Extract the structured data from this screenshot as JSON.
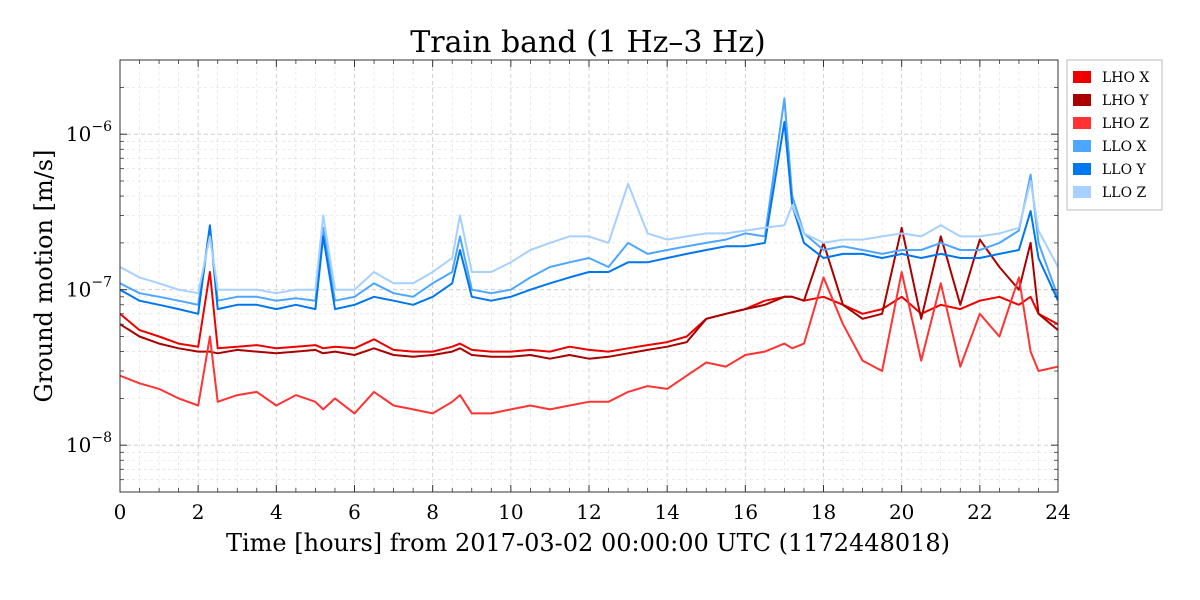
{
  "chart_data": {
    "type": "line",
    "title": "Train band (1 Hz–3 Hz)",
    "xlabel": "Time [hours] from 2017-03-02 00:00:00 UTC (1172448018)",
    "ylabel": "Ground motion [m/s]",
    "xlim": [
      0,
      24
    ],
    "ylim": [
      5e-09,
      3e-06
    ],
    "yscale": "log",
    "grid": true,
    "legend_position": "outside-top-right",
    "x_ticks": [
      0,
      2,
      4,
      6,
      8,
      10,
      12,
      14,
      16,
      18,
      20,
      22,
      24
    ],
    "x_tick_labels": [
      "0",
      "2",
      "4",
      "6",
      "8",
      "10",
      "12",
      "14",
      "16",
      "18",
      "20",
      "22",
      "24"
    ],
    "y_ticks": [
      1e-08,
      1e-07,
      1e-06
    ],
    "y_tick_labels": [
      {
        "base": "10",
        "exp": "−8"
      },
      {
        "base": "10",
        "exp": "−7"
      },
      {
        "base": "10",
        "exp": "−6"
      }
    ],
    "x": [
      0,
      0.5,
      1,
      1.5,
      2,
      2.3,
      2.5,
      3,
      3.5,
      4,
      4.5,
      5,
      5.2,
      5.5,
      6,
      6.5,
      7,
      7.5,
      8,
      8.5,
      8.7,
      9,
      9.5,
      10,
      10.5,
      11,
      11.5,
      12,
      12.5,
      13,
      13.5,
      14,
      14.5,
      15,
      15.5,
      16,
      16.5,
      17,
      17.2,
      17.5,
      18,
      18.5,
      19,
      19.5,
      20,
      20.5,
      21,
      21.5,
      22,
      22.5,
      23,
      23.3,
      23.5,
      24
    ],
    "series": [
      {
        "name": "LHO X",
        "color": "#ee0000",
        "values": [
          7e-08,
          5.5e-08,
          5e-08,
          4.5e-08,
          4.3e-08,
          1.3e-07,
          4.2e-08,
          4.3e-08,
          4.4e-08,
          4.2e-08,
          4.3e-08,
          4.4e-08,
          4.2e-08,
          4.3e-08,
          4.2e-08,
          4.8e-08,
          4.1e-08,
          4e-08,
          4e-08,
          4.3e-08,
          4.5e-08,
          4.1e-08,
          4e-08,
          4e-08,
          4.1e-08,
          4e-08,
          4.3e-08,
          4.1e-08,
          4e-08,
          4.2e-08,
          4.4e-08,
          4.6e-08,
          5e-08,
          6.5e-08,
          7e-08,
          7.5e-08,
          8.5e-08,
          9e-08,
          9e-08,
          8.5e-08,
          9e-08,
          8e-08,
          7e-08,
          7.5e-08,
          9e-08,
          7e-08,
          8e-08,
          7.5e-08,
          8.5e-08,
          9e-08,
          8e-08,
          9e-08,
          7e-08,
          6e-08
        ]
      },
      {
        "name": "LHO Y",
        "color": "#aa0000",
        "values": [
          6e-08,
          5e-08,
          4.5e-08,
          4.2e-08,
          4e-08,
          4e-08,
          3.9e-08,
          4.1e-08,
          4e-08,
          3.9e-08,
          4e-08,
          4.1e-08,
          3.9e-08,
          4e-08,
          3.8e-08,
          4.2e-08,
          3.8e-08,
          3.7e-08,
          3.8e-08,
          4e-08,
          4.2e-08,
          3.8e-08,
          3.7e-08,
          3.7e-08,
          3.8e-08,
          3.6e-08,
          3.8e-08,
          3.6e-08,
          3.7e-08,
          3.9e-08,
          4.1e-08,
          4.3e-08,
          4.6e-08,
          6.5e-08,
          7e-08,
          7.5e-08,
          8e-08,
          9e-08,
          9e-08,
          8.5e-08,
          2e-07,
          8e-08,
          6.5e-08,
          7e-08,
          2.5e-07,
          6.5e-08,
          2.2e-07,
          8e-08,
          2.1e-07,
          1.4e-07,
          1e-07,
          2e-07,
          7e-08,
          5.5e-08
        ]
      },
      {
        "name": "LHO Z",
        "color": "#ff3333",
        "values": [
          2.8e-08,
          2.5e-08,
          2.3e-08,
          2e-08,
          1.8e-08,
          5e-08,
          1.9e-08,
          2.1e-08,
          2.2e-08,
          1.8e-08,
          2.1e-08,
          1.9e-08,
          1.7e-08,
          2e-08,
          1.6e-08,
          2.2e-08,
          1.8e-08,
          1.7e-08,
          1.6e-08,
          1.9e-08,
          2.1e-08,
          1.6e-08,
          1.6e-08,
          1.7e-08,
          1.8e-08,
          1.7e-08,
          1.8e-08,
          1.9e-08,
          1.9e-08,
          2.2e-08,
          2.4e-08,
          2.3e-08,
          2.8e-08,
          3.4e-08,
          3.2e-08,
          3.8e-08,
          4e-08,
          4.5e-08,
          4.2e-08,
          4.5e-08,
          1.2e-07,
          6e-08,
          3.5e-08,
          3e-08,
          1.3e-07,
          3.5e-08,
          1.1e-07,
          3.2e-08,
          7e-08,
          5e-08,
          1.2e-07,
          4e-08,
          3e-08,
          3.2e-08
        ]
      },
      {
        "name": "LLO X",
        "color": "#4da6ff",
        "values": [
          1.1e-07,
          9.5e-08,
          9e-08,
          8.5e-08,
          8e-08,
          2.5e-07,
          8.5e-08,
          9e-08,
          9e-08,
          8.5e-08,
          8.8e-08,
          8.5e-08,
          2.5e-07,
          8.5e-08,
          9e-08,
          1.1e-07,
          9.5e-08,
          9e-08,
          1.1e-07,
          1.3e-07,
          2.2e-07,
          1e-07,
          9.5e-08,
          1e-07,
          1.2e-07,
          1.4e-07,
          1.5e-07,
          1.6e-07,
          1.4e-07,
          2e-07,
          1.7e-07,
          1.8e-07,
          1.9e-07,
          2e-07,
          2.1e-07,
          2.3e-07,
          2.2e-07,
          1.7e-06,
          4e-07,
          2.3e-07,
          1.8e-07,
          1.9e-07,
          1.8e-07,
          1.7e-07,
          1.8e-07,
          1.8e-07,
          2e-07,
          1.8e-07,
          1.8e-07,
          2e-07,
          2.4e-07,
          5.5e-07,
          2e-07,
          9e-08
        ]
      },
      {
        "name": "LLO Y",
        "color": "#0077ee",
        "values": [
          1e-07,
          8.5e-08,
          8e-08,
          7.5e-08,
          7e-08,
          2.6e-07,
          7.5e-08,
          8e-08,
          8e-08,
          7.5e-08,
          8e-08,
          7.5e-08,
          2.2e-07,
          7.5e-08,
          8e-08,
          9e-08,
          8.5e-08,
          8e-08,
          9e-08,
          1.1e-07,
          1.8e-07,
          9e-08,
          8.5e-08,
          9e-08,
          1e-07,
          1.1e-07,
          1.2e-07,
          1.3e-07,
          1.3e-07,
          1.5e-07,
          1.5e-07,
          1.6e-07,
          1.7e-07,
          1.8e-07,
          1.9e-07,
          1.9e-07,
          2e-07,
          1.2e-06,
          3.5e-07,
          2e-07,
          1.6e-07,
          1.7e-07,
          1.7e-07,
          1.6e-07,
          1.7e-07,
          1.6e-07,
          1.7e-07,
          1.6e-07,
          1.6e-07,
          1.7e-07,
          1.8e-07,
          3.2e-07,
          1.6e-07,
          8.5e-08
        ]
      },
      {
        "name": "LLO Z",
        "color": "#a6d0ff",
        "values": [
          1.4e-07,
          1.2e-07,
          1.1e-07,
          1e-07,
          9.5e-08,
          2.2e-07,
          1e-07,
          1e-07,
          1e-07,
          9.5e-08,
          1e-07,
          1e-07,
          3e-07,
          1e-07,
          1e-07,
          1.3e-07,
          1.1e-07,
          1.1e-07,
          1.3e-07,
          1.6e-07,
          3e-07,
          1.3e-07,
          1.3e-07,
          1.5e-07,
          1.8e-07,
          2e-07,
          2.2e-07,
          2.2e-07,
          2e-07,
          4.8e-07,
          2.3e-07,
          2.1e-07,
          2.2e-07,
          2.3e-07,
          2.3e-07,
          2.4e-07,
          2.5e-07,
          2.6e-07,
          3.5e-07,
          2.3e-07,
          2e-07,
          2.1e-07,
          2.1e-07,
          2.2e-07,
          2.3e-07,
          2.2e-07,
          2.6e-07,
          2.2e-07,
          2.2e-07,
          2.3e-07,
          2.5e-07,
          5e-07,
          2.4e-07,
          1.4e-07
        ]
      }
    ]
  }
}
